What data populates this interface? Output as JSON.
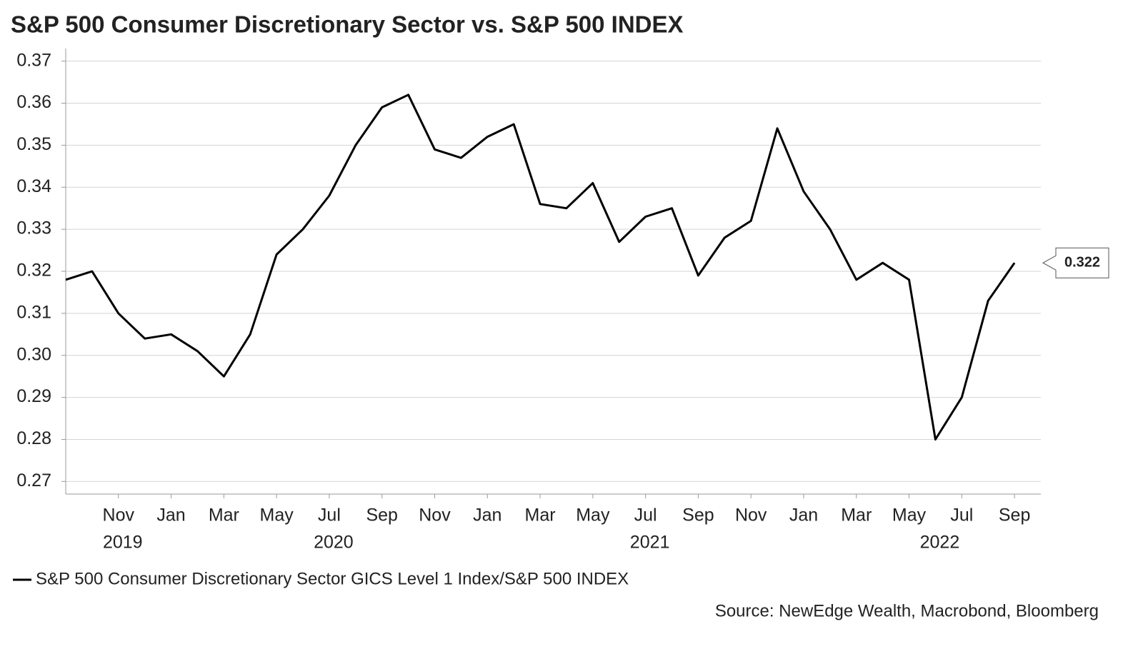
{
  "chart_data": {
    "type": "line",
    "title": "S&P 500 Consumer Discretionary Sector vs. S&P 500 INDEX",
    "source": "Source: NewEdge Wealth, Macrobond, Bloomberg",
    "x": [
      "2019-09",
      "2019-10",
      "2019-11",
      "2019-12",
      "2020-01",
      "2020-02",
      "2020-03",
      "2020-04",
      "2020-05",
      "2020-06",
      "2020-07",
      "2020-08",
      "2020-09",
      "2020-10",
      "2020-11",
      "2020-12",
      "2021-01",
      "2021-02",
      "2021-03",
      "2021-04",
      "2021-05",
      "2021-06",
      "2021-07",
      "2021-08",
      "2021-09",
      "2021-10",
      "2021-11",
      "2021-12",
      "2022-01",
      "2022-02",
      "2022-03",
      "2022-04",
      "2022-05",
      "2022-06",
      "2022-07",
      "2022-08",
      "2022-09"
    ],
    "series": [
      {
        "name": "S&P 500 Consumer Discretionary Sector GICS Level 1 Index/S&P 500 INDEX",
        "color": "#000000",
        "values": [
          0.318,
          0.32,
          0.31,
          0.304,
          0.305,
          0.301,
          0.295,
          0.305,
          0.324,
          0.33,
          0.338,
          0.35,
          0.359,
          0.362,
          0.349,
          0.347,
          0.352,
          0.355,
          0.336,
          0.335,
          0.341,
          0.327,
          0.333,
          0.335,
          0.319,
          0.328,
          0.332,
          0.354,
          0.339,
          0.33,
          0.318,
          0.322,
          0.318,
          0.28,
          0.29,
          0.313,
          0.322
        ]
      }
    ],
    "xlim": [
      "2019-09",
      "2022-10"
    ],
    "xticks": [
      {
        "value": "2019-11",
        "label": "Nov"
      },
      {
        "value": "2020-01",
        "label": "Jan"
      },
      {
        "value": "2020-03",
        "label": "Mar"
      },
      {
        "value": "2020-05",
        "label": "May"
      },
      {
        "value": "2020-07",
        "label": "Jul"
      },
      {
        "value": "2020-09",
        "label": "Sep"
      },
      {
        "value": "2020-11",
        "label": "Nov"
      },
      {
        "value": "2021-01",
        "label": "Jan"
      },
      {
        "value": "2021-03",
        "label": "Mar"
      },
      {
        "value": "2021-05",
        "label": "May"
      },
      {
        "value": "2021-07",
        "label": "Jul"
      },
      {
        "value": "2021-09",
        "label": "Sep"
      },
      {
        "value": "2021-11",
        "label": "Nov"
      },
      {
        "value": "2022-01",
        "label": "Jan"
      },
      {
        "value": "2022-03",
        "label": "Mar"
      },
      {
        "value": "2022-05",
        "label": "May"
      },
      {
        "value": "2022-07",
        "label": "Jul"
      },
      {
        "value": "2022-09",
        "label": "Sep"
      }
    ],
    "year_labels": [
      {
        "value": "2019-11",
        "label": "2019"
      },
      {
        "value": "2020-07",
        "label": "2020"
      },
      {
        "value": "2021-07",
        "label": "2021"
      },
      {
        "value": "2022-06",
        "label": "2022"
      }
    ],
    "ylim": [
      0.267,
      0.373
    ],
    "yticks": [
      0.27,
      0.28,
      0.29,
      {
        "value": 0.3,
        "label": "0.30"
      },
      0.31,
      0.32,
      0.33,
      0.34,
      0.35,
      0.36,
      0.37
    ],
    "grid": true
  }
}
